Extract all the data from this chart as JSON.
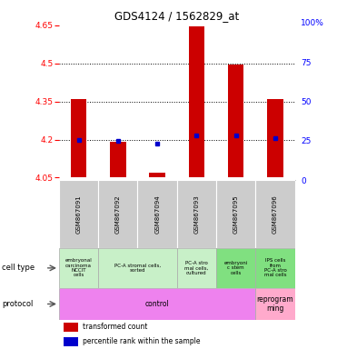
{
  "title": "GDS4124 / 1562829_at",
  "samples": [
    "GSM867091",
    "GSM867092",
    "GSM867094",
    "GSM867093",
    "GSM867095",
    "GSM867096"
  ],
  "red_bar_bottoms": [
    4.05,
    4.05,
    4.05,
    4.05,
    4.05,
    4.05
  ],
  "red_bar_tops": [
    4.36,
    4.19,
    4.07,
    4.645,
    4.495,
    4.36
  ],
  "blue_dot_values": [
    4.2,
    4.195,
    4.185,
    4.215,
    4.215,
    4.205
  ],
  "ylim_left": [
    4.04,
    4.66
  ],
  "ylim_right": [
    0,
    100
  ],
  "yticks_left": [
    4.05,
    4.2,
    4.35,
    4.5,
    4.65
  ],
  "yticks_right": [
    0,
    25,
    50,
    75,
    100
  ],
  "ytick_labels_left": [
    "4.05",
    "4.2",
    "4.35",
    "4.5",
    "4.65"
  ],
  "ytick_labels_right": [
    "0",
    "25",
    "50",
    "75",
    "100%"
  ],
  "dotted_lines": [
    4.2,
    4.35,
    4.5
  ],
  "bar_color": "#cc0000",
  "dot_color": "#0000cc",
  "cell_groups": [
    {
      "start": 0,
      "end": 0,
      "label": "embryonal\ncarcinoma\nNCCIT\ncells",
      "color": "#c8f0c8"
    },
    {
      "start": 1,
      "end": 2,
      "label": "PC-A stromal cells,\nsorted",
      "color": "#c8f0c8"
    },
    {
      "start": 3,
      "end": 3,
      "label": "PC-A stro\nmal cells,\ncultured",
      "color": "#c8f0c8"
    },
    {
      "start": 4,
      "end": 4,
      "label": "embryoni\nc stem\ncells",
      "color": "#80e080"
    },
    {
      "start": 5,
      "end": 5,
      "label": "IPS cells\nfrom\nPC-A stro\nmal cells",
      "color": "#80e080"
    }
  ],
  "protocol_groups": [
    {
      "start": 0,
      "end": 4,
      "label": "control",
      "color": "#ee82ee"
    },
    {
      "start": 5,
      "end": 5,
      "label": "reprogram\nming",
      "color": "#ffaacc"
    }
  ]
}
